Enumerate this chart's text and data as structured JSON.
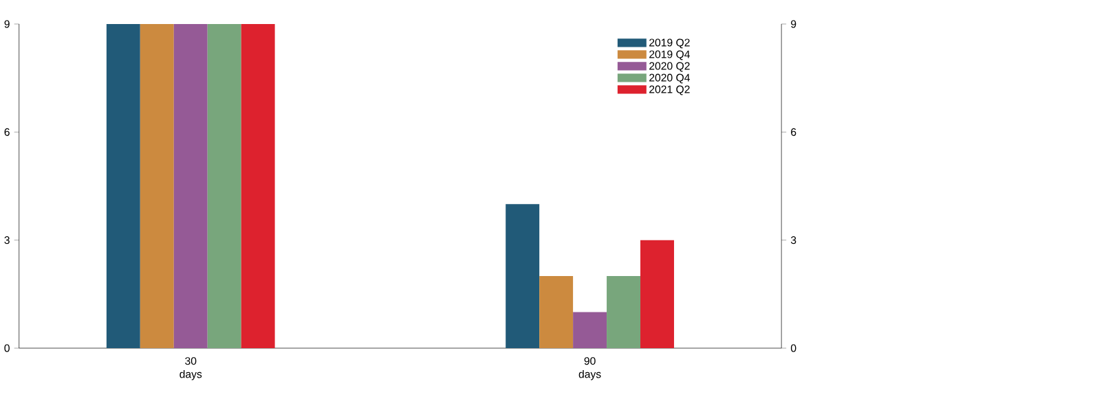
{
  "chart_data": {
    "type": "bar",
    "categories": [
      "30 days",
      "90 days"
    ],
    "series": [
      {
        "name": "2019 Q2",
        "color": "#215a78",
        "values": [
          9,
          4
        ]
      },
      {
        "name": "2019 Q4",
        "color": "#cc8a3f",
        "values": [
          9,
          2
        ]
      },
      {
        "name": "2020 Q2",
        "color": "#955a96",
        "values": [
          9,
          1
        ]
      },
      {
        "name": "2020 Q4",
        "color": "#78a67c",
        "values": [
          9,
          2
        ]
      },
      {
        "name": "2021 Q2",
        "color": "#dd222e",
        "values": [
          9,
          3
        ]
      }
    ],
    "ylim": [
      0,
      9
    ],
    "yticks": [
      0,
      3,
      6,
      9
    ],
    "y2lim": [
      0,
      9
    ],
    "y2ticks": [
      0,
      3,
      6,
      9
    ],
    "legend": "top right",
    "grid": false
  }
}
